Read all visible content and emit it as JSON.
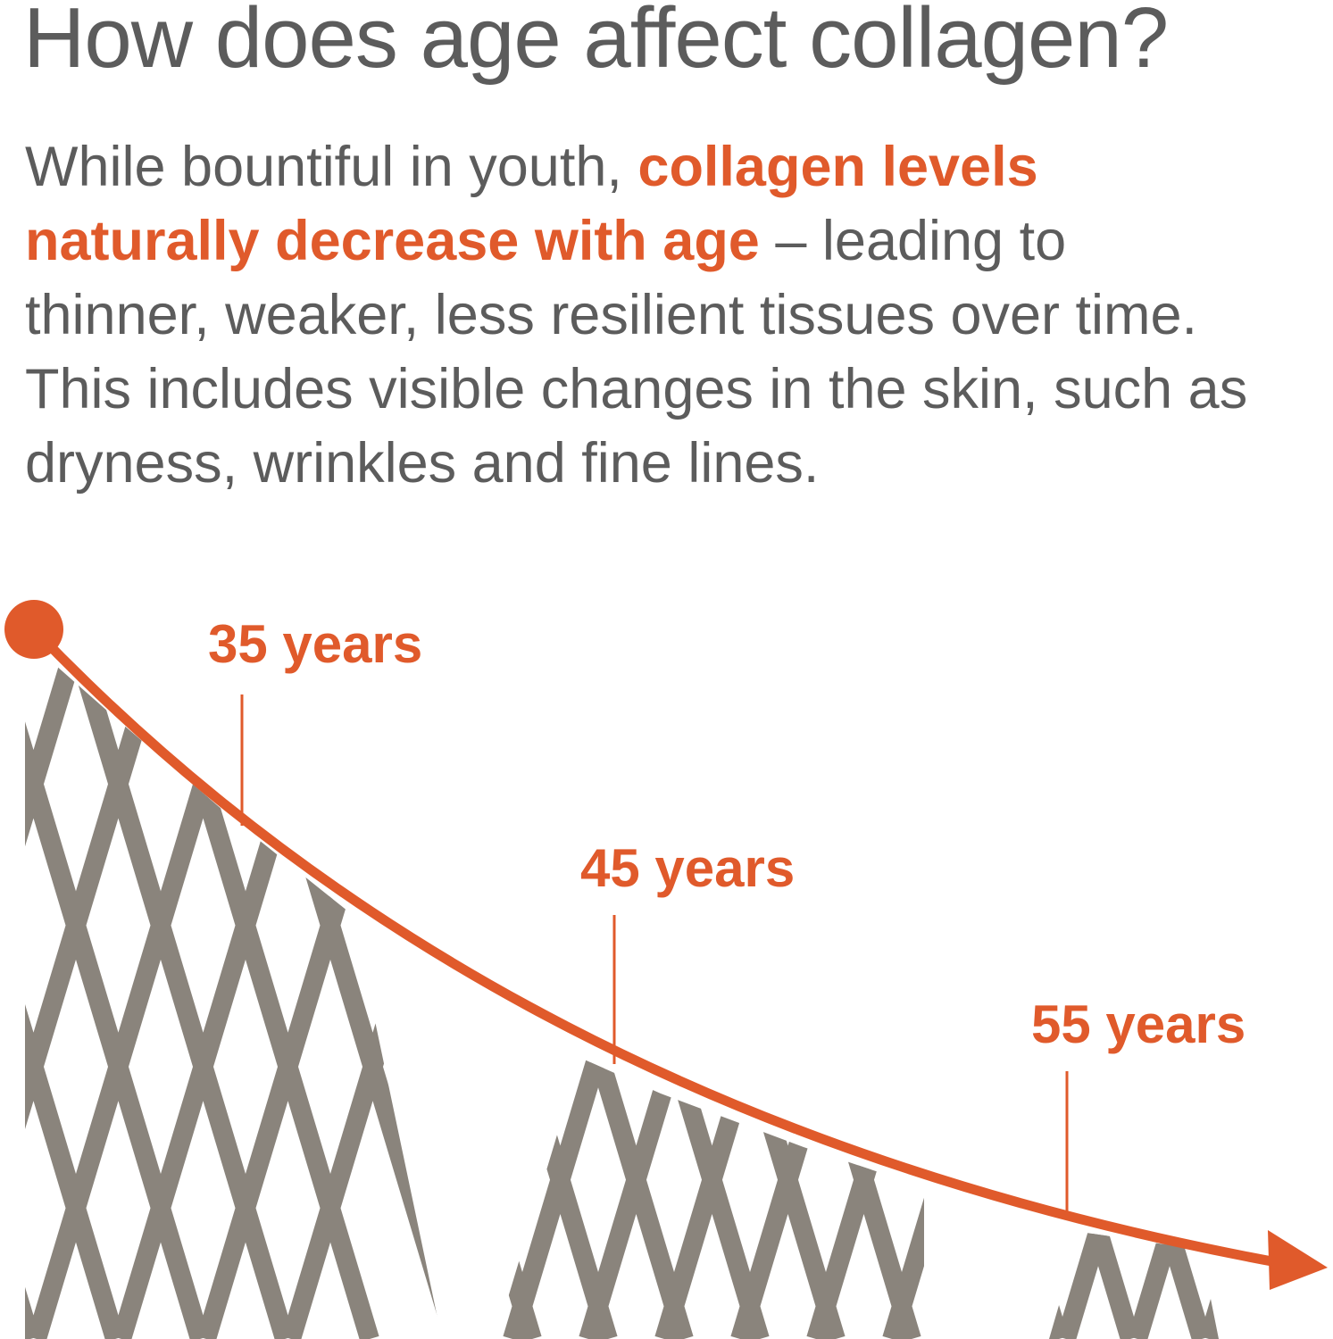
{
  "title": "How does age affect collagen?",
  "paragraph": {
    "intro": "While bountiful in youth,",
    "highlight": "collagen levels naturally decrease with age",
    "rest": "– leading to thinner, weaker, less resilient tissues over time. This includes visible changes in the skin, such as dryness, wrinkles and fine lines."
  },
  "markers": [
    {
      "label": "35 years"
    },
    {
      "label": "45 years"
    },
    {
      "label": "55 years"
    }
  ]
}
